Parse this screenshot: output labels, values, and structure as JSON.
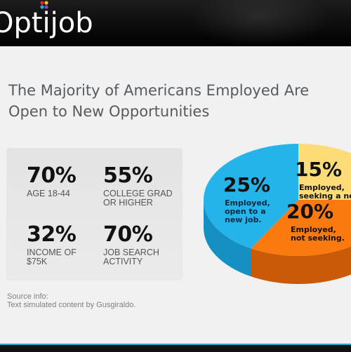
{
  "header": {
    "logo_text": "Optijob",
    "colors": {
      "bar": "#000000",
      "accent_cyan": "#2aa9d8",
      "dot_red": "#e8242c",
      "dot_yellow": "#f6c21c",
      "dot_blue": "#2aa9d8",
      "dot_purple": "#8a45c8"
    }
  },
  "title": {
    "line1": "The Majority of Americans Employed Are",
    "line2": "Open to New Opportunities"
  },
  "stats": [
    {
      "value": "70%",
      "label": "AGE 18-44"
    },
    {
      "value": "55%",
      "label": "COLLEGE GRAD\nOR HIGHER"
    },
    {
      "value": "32%",
      "label": "INCOME OF\n$75K"
    },
    {
      "value": "70%",
      "label": "JOB SEARCH\nACTIVITY"
    }
  ],
  "source": {
    "line1": "Source info:",
    "line2": "Text simulated content by Gusgiraldo."
  },
  "chart_data": {
    "type": "pie",
    "title": "",
    "slices": [
      {
        "value": 25,
        "label_value": "25%",
        "label": "Employed,\nopen to a\nnew job.",
        "color": "#25b4ea",
        "side": "#1690c2"
      },
      {
        "value": 15,
        "label_value": "15%",
        "label": "Employed,\nseeking a new job.",
        "color": "#fddc78",
        "side": "#d9b548"
      },
      {
        "value": 20,
        "label_value": "20%",
        "label": "Employed,\nnot seeking.",
        "color": "#fb7a10",
        "side": "#c95a08"
      }
    ]
  }
}
